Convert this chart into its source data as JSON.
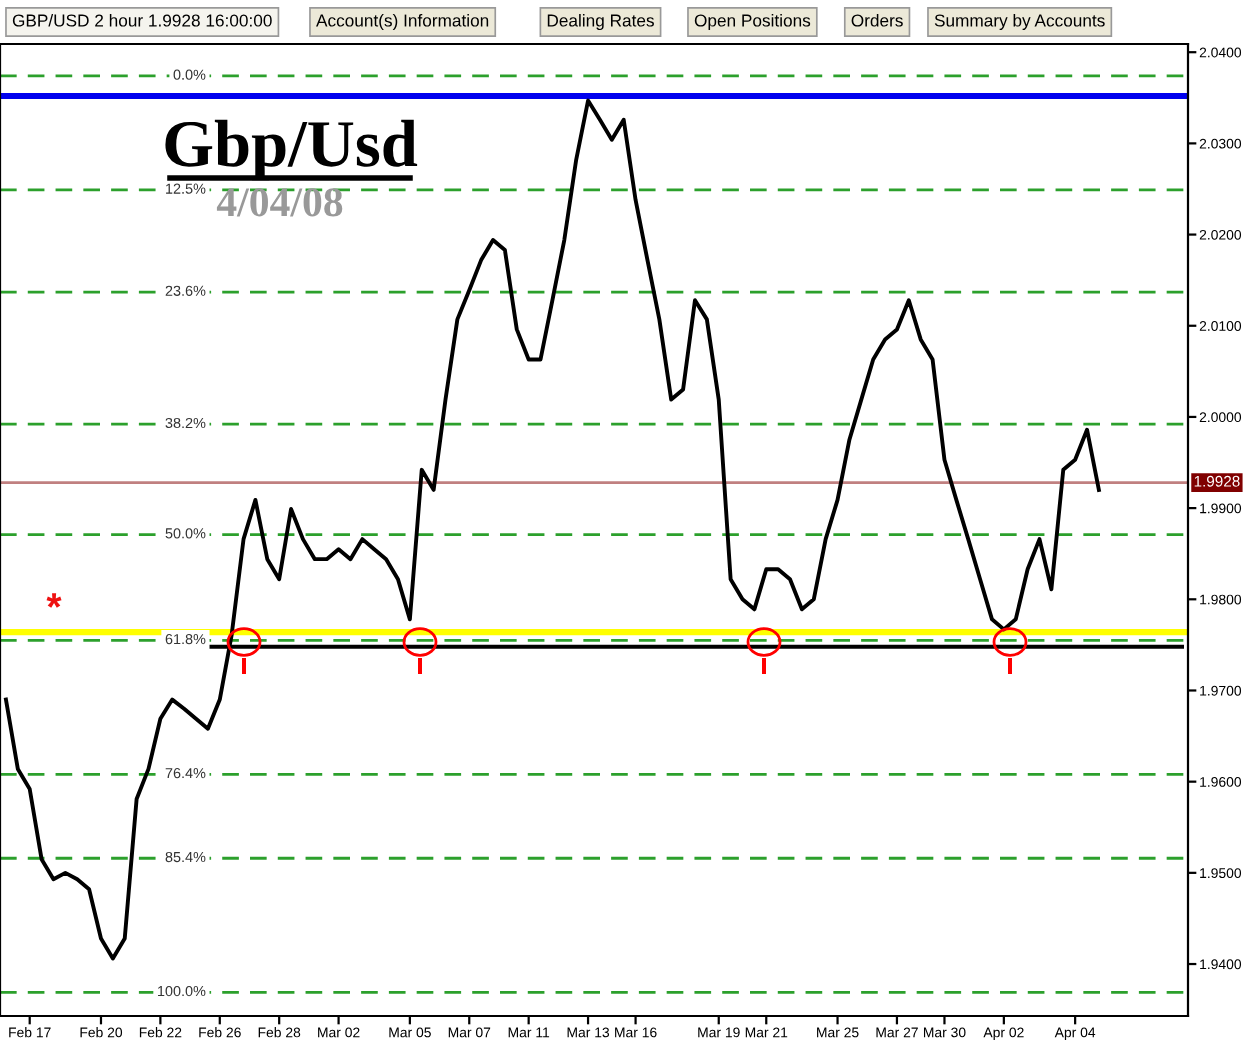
{
  "chart_data": {
    "type": "line",
    "title": "Gbp/Usd",
    "subtitle": "4/04/08",
    "categories": [
      null,
      null,
      "Feb 17",
      null,
      null,
      null,
      null,
      null,
      "Feb 20",
      null,
      null,
      null,
      null,
      "Feb 22",
      null,
      null,
      null,
      null,
      "Feb 26",
      null,
      null,
      null,
      null,
      "Feb 28",
      null,
      null,
      null,
      null,
      "Mar 02",
      null,
      null,
      null,
      null,
      null,
      "Mar 05",
      null,
      null,
      null,
      null,
      "Mar 07",
      null,
      null,
      null,
      null,
      "Mar 11",
      null,
      null,
      null,
      null,
      "Mar 13",
      null,
      null,
      null,
      "Mar 16",
      null,
      null,
      null,
      null,
      null,
      null,
      "Mar 19",
      null,
      null,
      null,
      "Mar 21",
      null,
      null,
      null,
      null,
      null,
      "Mar 25",
      null,
      null,
      null,
      null,
      "Mar 27",
      null,
      null,
      null,
      "Mar 30",
      null,
      null,
      null,
      null,
      "Apr 02",
      null,
      null,
      null,
      null,
      null,
      "Apr 04",
      null,
      null,
      null,
      null,
      null,
      null,
      null,
      null,
      null
    ],
    "series": [
      {
        "color": "#000000",
        "values": [
          1.969,
          1.9614,
          1.9592,
          1.9515,
          1.9493,
          1.95,
          1.9493,
          1.9482,
          1.9428,
          1.9406,
          1.9428,
          1.9581,
          1.9614,
          1.9669,
          1.969,
          1.968,
          1.9669,
          1.9658,
          1.969,
          1.9761,
          1.9866,
          1.9909,
          1.9844,
          1.9822,
          1.9899,
          1.9866,
          1.9844,
          1.9844,
          1.9855,
          1.9844,
          1.9866,
          1.9855,
          1.9844,
          1.9822,
          1.9778,
          1.9942,
          1.992,
          2.0019,
          2.0107,
          2.0139,
          2.0172,
          2.0194,
          2.0183,
          2.0096,
          2.0063,
          2.0063,
          2.0128,
          2.0194,
          2.0282,
          2.0347,
          2.0326,
          2.0304,
          2.0326,
          2.0238,
          2.0172,
          2.0107,
          2.0019,
          2.003,
          2.0128,
          2.0107,
          2.0019,
          1.9822,
          1.98,
          1.9789,
          1.9833,
          1.9833,
          1.9822,
          1.9789,
          1.98,
          1.9866,
          1.9909,
          1.9975,
          2.0019,
          2.0063,
          2.0085,
          2.0096,
          2.0128,
          2.0085,
          2.0063,
          1.9953,
          1.9909,
          1.9866,
          1.9822,
          1.9778,
          1.9767,
          1.9778,
          1.9833,
          1.9866,
          1.9811,
          1.9942,
          1.9953,
          1.9986,
          1.992,
          null,
          null,
          null,
          null,
          null,
          null,
          null
        ]
      },
      {
        "color": "#000000",
        "values": [
          null,
          null,
          null,
          null,
          null,
          null,
          null,
          null,
          null,
          null,
          null,
          null,
          null,
          null,
          null,
          null,
          null,
          1.9748,
          1.9748,
          1.9748,
          1.9748,
          1.9748,
          1.9748,
          1.9748,
          1.9748,
          1.9748,
          1.9748,
          1.9748,
          1.9748,
          1.9748,
          1.9748,
          1.9748,
          1.9748,
          1.9748,
          1.9748,
          1.9748,
          1.9748,
          1.9748,
          1.9748,
          1.9748,
          1.9748,
          1.9748,
          1.9748,
          1.9748,
          1.9748,
          1.9748,
          1.9748,
          1.9748,
          1.9748,
          1.9748,
          1.9748,
          1.9748,
          1.9748,
          1.9748,
          1.9748,
          1.9748,
          1.9748,
          1.9748,
          1.9748,
          1.9748,
          1.9748,
          1.9748,
          1.9748,
          1.9748,
          1.9748,
          1.9748,
          1.9748,
          1.9748,
          1.9748,
          1.9748,
          1.9748,
          1.9748,
          1.9748,
          1.9748,
          1.9748,
          1.9748,
          1.9748,
          1.9748,
          1.9748,
          1.9748,
          1.9748,
          1.9748,
          1.9748,
          1.9748,
          1.9748,
          1.9748,
          1.9748,
          1.9748,
          1.9748,
          1.9748,
          1.9748,
          1.9748,
          1.9748,
          1.9748,
          1.9748,
          1.9748,
          1.9748,
          1.9748,
          1.9748,
          1.9748
        ]
      }
    ],
    "ylim": [
      1.9343,
      2.0409
    ],
    "yticks": [
      {
        "value": 1.94,
        "label": "1.9400"
      },
      {
        "value": 1.95,
        "label": "1.9500"
      },
      {
        "value": 1.96,
        "label": "1.9600"
      },
      {
        "value": 1.97,
        "label": "1.9700"
      },
      {
        "value": 1.98,
        "label": "1.9800"
      },
      {
        "value": 1.99,
        "label": "1.9900"
      },
      {
        "value": 2.0,
        "label": "2.0000"
      },
      {
        "value": 2.01,
        "label": "2.0100"
      },
      {
        "value": 2.02,
        "label": "2.0200"
      },
      {
        "value": 2.03,
        "label": "2.0300"
      },
      {
        "value": 2.04,
        "label": "2.0400"
      }
    ],
    "ref_lines": [
      {
        "axis": "y",
        "value": 2.0374,
        "color": "#2ca02c",
        "line_style": "dashed"
      },
      {
        "axis": "y",
        "value": 2.0249,
        "color": "#2ca02c",
        "line_style": "dashed"
      },
      {
        "axis": "y",
        "value": 2.0137,
        "color": "#2ca02c",
        "line_style": "dashed"
      },
      {
        "axis": "y",
        "value": 1.9992,
        "color": "#2ca02c",
        "line_style": "dashed"
      },
      {
        "axis": "y",
        "value": 1.9871,
        "color": "#2ca02c",
        "line_style": "dashed"
      },
      {
        "axis": "y",
        "value": 1.9755,
        "color": "#2ca02c",
        "line_style": "dashed"
      },
      {
        "axis": "y",
        "value": 1.9608,
        "color": "#2ca02c",
        "line_style": "dashed"
      },
      {
        "axis": "y",
        "value": 1.9516,
        "color": "#2ca02c",
        "line_style": "dashed"
      },
      {
        "axis": "y",
        "value": 1.9369,
        "color": "#2ca02c",
        "line_style": "dashed"
      },
      {
        "axis": "y",
        "value": 2.0352,
        "color": "#0000ee",
        "line_style": "solid"
      },
      {
        "axis": "y",
        "value": 1.9764,
        "color": "#ffff00",
        "line_style": "solid"
      },
      {
        "axis": "y",
        "value": 1.9928,
        "label": "1.9928",
        "color": "#c08080",
        "line_style": "solid"
      }
    ],
    "annotations": [
      {
        "text": "0.0%",
        "y": 2.0374
      },
      {
        "text": "12.5%",
        "y": 2.0249
      },
      {
        "text": "23.6%",
        "y": 2.0137
      },
      {
        "text": "38.2%",
        "y": 1.9992
      },
      {
        "text": "50.0%",
        "y": 1.9871
      },
      {
        "text": "61.8%",
        "y": 1.9755
      },
      {
        "text": "76.4%",
        "y": 1.9608
      },
      {
        "text": "85.4%",
        "y": 1.9516
      },
      {
        "text": "100.0%",
        "y": 1.9369
      },
      "GBP/USD 2 hour 1.9928 16:00:00",
      "Account(s) Information",
      "Dealing Rates",
      "Open Positions",
      "Orders",
      "Summary by Accounts",
      "*"
    ],
    "grid": false,
    "legend": false
  }
}
